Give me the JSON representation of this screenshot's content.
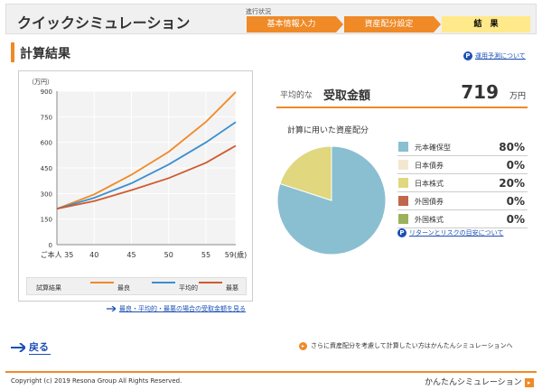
{
  "header": {
    "title": "クイックシミュレーション",
    "progress_label": "進行状況",
    "steps": [
      {
        "label": "基本情報入力"
      },
      {
        "label": "資産配分設定"
      },
      {
        "label": "結　果"
      }
    ]
  },
  "section": {
    "title": "計算結果",
    "forecast_link": "運用予測について"
  },
  "chart_data": {
    "type": "line",
    "ylabel": "（万円）",
    "x": [
      35,
      59
    ],
    "xticks": [
      "ご本人 35",
      "40",
      "45",
      "50",
      "55",
      "59(歳)"
    ],
    "xtick_values": [
      35,
      40,
      45,
      50,
      55,
      59
    ],
    "yticks": [
      "0",
      "150",
      "300",
      "450",
      "600",
      "750",
      "900"
    ],
    "ylim": [
      0,
      900
    ],
    "grid": true,
    "series": [
      {
        "name": "最良",
        "color": "#ef8a27",
        "values": [
          [
            35,
            210
          ],
          [
            40,
            295
          ],
          [
            45,
            410
          ],
          [
            50,
            545
          ],
          [
            55,
            720
          ],
          [
            59,
            895
          ]
        ]
      },
      {
        "name": "平均的",
        "color": "#3b8fd0",
        "values": [
          [
            35,
            210
          ],
          [
            40,
            275
          ],
          [
            45,
            360
          ],
          [
            50,
            470
          ],
          [
            55,
            600
          ],
          [
            59,
            719
          ]
        ]
      },
      {
        "name": "最悪",
        "color": "#d05a2e",
        "values": [
          [
            35,
            210
          ],
          [
            40,
            255
          ],
          [
            45,
            320
          ],
          [
            50,
            390
          ],
          [
            55,
            480
          ],
          [
            59,
            580
          ]
        ]
      }
    ],
    "legend_title": "試算結果"
  },
  "compare_link": "最良・平均的・最悪の場合の受取金額を見る",
  "result": {
    "avg_prefix": "平均的な",
    "avg_label": "受取金額",
    "avg_value": "719",
    "unit": "万円"
  },
  "allocation": {
    "title": "計算に用いた資産配分",
    "items": [
      {
        "name": "元本確保型",
        "pct": "80%",
        "value": 80,
        "color": "#8abfd2"
      },
      {
        "name": "日本債券",
        "pct": "0%",
        "value": 0,
        "color": "#f1e8cf"
      },
      {
        "name": "日本株式",
        "pct": "20%",
        "value": 20,
        "color": "#e0d77f"
      },
      {
        "name": "外国債券",
        "pct": "0%",
        "value": 0,
        "color": "#c0674c"
      },
      {
        "name": "外国株式",
        "pct": "0%",
        "value": 0,
        "color": "#9cb25a"
      }
    ],
    "risk_link": "リターンとリスクの目安について"
  },
  "nav": {
    "back_label": "戻る",
    "sim_note": "さらに資産配分を考慮して計算したい方はかんたんシミュレーションへ"
  },
  "footer": {
    "copyright": "Copyright (c) 2019 Resona Group All Rights Reserved.",
    "simple_sim": "かんたんシミュレーション"
  }
}
